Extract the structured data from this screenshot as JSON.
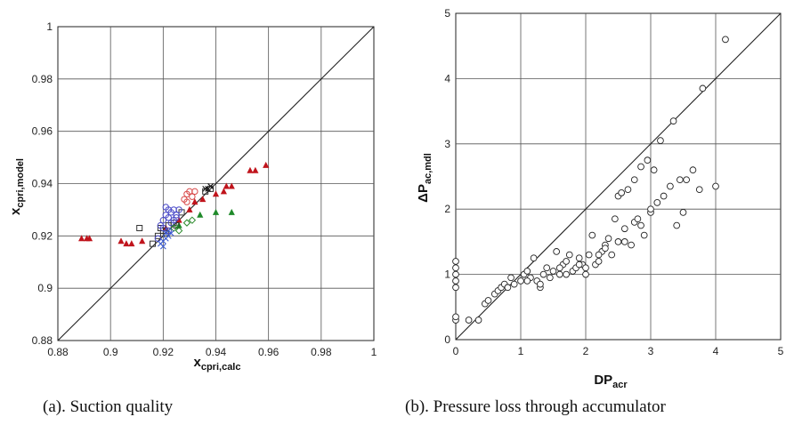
{
  "chart_data": [
    {
      "type": "scatter",
      "caption": "(a).  Suction quality",
      "xlabel_main": "x",
      "xlabel_sub": "cpri,calc",
      "ylabel_main": "x",
      "ylabel_sub": "cpri,model",
      "xlim": [
        0.88,
        1
      ],
      "ylim": [
        0.88,
        1
      ],
      "xticks": [
        "0.88",
        "0.9",
        "0.92",
        "0.94",
        "0.96",
        "0.98",
        "1"
      ],
      "yticks": [
        "0.88",
        "0.9",
        "0.92",
        "0.94",
        "0.96",
        "0.98",
        "1"
      ],
      "grid": true,
      "reference_line": "y = x",
      "colors": {
        "triangle_red": "#c0141c",
        "triangle_green": "#1f8a2a",
        "square": "#333333",
        "circle_blue": "#4a4ac8",
        "circle_red": "#d84a4a",
        "diamond_green": "#2a8a2a",
        "cross_blue": "#3a5ad0"
      },
      "series": [
        {
          "marker": "triangle",
          "color": "#c0141c",
          "points": [
            [
              0.889,
              0.919
            ],
            [
              0.891,
              0.919
            ],
            [
              0.892,
              0.919
            ],
            [
              0.904,
              0.918
            ],
            [
              0.906,
              0.917
            ],
            [
              0.908,
              0.917
            ],
            [
              0.912,
              0.918
            ],
            [
              0.921,
              0.923
            ],
            [
              0.926,
              0.926
            ],
            [
              0.93,
              0.93
            ],
            [
              0.932,
              0.933
            ],
            [
              0.935,
              0.934
            ],
            [
              0.94,
              0.936
            ],
            [
              0.943,
              0.937
            ],
            [
              0.944,
              0.939
            ],
            [
              0.946,
              0.939
            ],
            [
              0.953,
              0.945
            ],
            [
              0.955,
              0.945
            ],
            [
              0.959,
              0.947
            ]
          ]
        },
        {
          "marker": "triangle",
          "color": "#1f8a2a",
          "points": [
            [
              0.94,
              0.929
            ],
            [
              0.946,
              0.929
            ],
            [
              0.934,
              0.928
            ],
            [
              0.926,
              0.924
            ]
          ]
        },
        {
          "marker": "square",
          "color": "#333333",
          "points": [
            [
              0.911,
              0.923
            ],
            [
              0.916,
              0.917
            ],
            [
              0.918,
              0.92
            ],
            [
              0.919,
              0.923
            ],
            [
              0.92,
              0.922
            ],
            [
              0.921,
              0.921
            ],
            [
              0.922,
              0.924
            ],
            [
              0.924,
              0.925
            ],
            [
              0.925,
              0.924
            ],
            [
              0.927,
              0.929
            ],
            [
              0.936,
              0.937
            ],
            [
              0.938,
              0.938
            ]
          ]
        },
        {
          "marker": "circle",
          "color": "#4a4ac8",
          "points": [
            [
              0.918,
              0.919
            ],
            [
              0.919,
              0.924
            ],
            [
              0.92,
              0.926
            ],
            [
              0.921,
              0.928
            ],
            [
              0.921,
              0.931
            ],
            [
              0.922,
              0.93
            ],
            [
              0.922,
              0.927
            ],
            [
              0.923,
              0.925
            ],
            [
              0.923,
              0.929
            ],
            [
              0.924,
              0.926
            ],
            [
              0.924,
              0.93
            ],
            [
              0.925,
              0.927
            ],
            [
              0.925,
              0.928
            ],
            [
              0.926,
              0.93
            ],
            [
              0.92,
              0.923
            ],
            [
              0.922,
              0.922
            ]
          ]
        },
        {
          "marker": "circle",
          "color": "#d84a4a",
          "points": [
            [
              0.928,
              0.934
            ],
            [
              0.929,
              0.936
            ],
            [
              0.93,
              0.937
            ],
            [
              0.931,
              0.935
            ],
            [
              0.932,
              0.937
            ],
            [
              0.929,
              0.933
            ]
          ]
        },
        {
          "marker": "diamond",
          "color": "#2a8a2a",
          "points": [
            [
              0.924,
              0.923
            ],
            [
              0.926,
              0.922
            ],
            [
              0.929,
              0.925
            ],
            [
              0.931,
              0.926
            ]
          ]
        },
        {
          "marker": "cross",
          "color": "#3a5ad0",
          "points": [
            [
              0.919,
              0.917
            ],
            [
              0.92,
              0.918
            ],
            [
              0.921,
              0.919
            ],
            [
              0.922,
              0.92
            ],
            [
              0.921,
              0.921
            ],
            [
              0.92,
              0.916
            ],
            [
              0.922,
              0.922
            ],
            [
              0.923,
              0.921
            ]
          ]
        },
        {
          "marker": "cross",
          "color": "#111111",
          "points": [
            [
              0.936,
              0.938
            ],
            [
              0.937,
              0.938
            ],
            [
              0.938,
              0.939
            ]
          ]
        }
      ]
    },
    {
      "type": "scatter",
      "caption": "(b). Pressure loss through accumulator",
      "xlabel_main": "DP",
      "xlabel_sub": "acr",
      "ylabel_main": "ΔP",
      "ylabel_sub": "ac,mdl",
      "xlim": [
        0,
        5
      ],
      "ylim": [
        0,
        5
      ],
      "xticks": [
        "0",
        "1",
        "2",
        "3",
        "4",
        "5"
      ],
      "yticks": [
        "0",
        "1",
        "2",
        "3",
        "4",
        "5"
      ],
      "grid": true,
      "reference_line": "y = x",
      "series": [
        {
          "marker": "open-circle",
          "color": "#222222",
          "points": [
            [
              0,
              0.3
            ],
            [
              0,
              0.35
            ],
            [
              0,
              0.8
            ],
            [
              0,
              0.9
            ],
            [
              0,
              1.0
            ],
            [
              0,
              1.1
            ],
            [
              0,
              1.2
            ],
            [
              0.2,
              0.3
            ],
            [
              0.35,
              0.3
            ],
            [
              0.45,
              0.55
            ],
            [
              0.5,
              0.6
            ],
            [
              0.6,
              0.7
            ],
            [
              0.65,
              0.75
            ],
            [
              0.7,
              0.8
            ],
            [
              0.75,
              0.85
            ],
            [
              0.8,
              0.8
            ],
            [
              0.85,
              0.95
            ],
            [
              0.9,
              0.85
            ],
            [
              1.0,
              0.9
            ],
            [
              1.05,
              1.0
            ],
            [
              1.1,
              1.05
            ],
            [
              1.15,
              0.95
            ],
            [
              1.2,
              1.25
            ],
            [
              1.25,
              0.9
            ],
            [
              1.3,
              0.8
            ],
            [
              1.35,
              1.0
            ],
            [
              1.4,
              1.1
            ],
            [
              1.45,
              0.95
            ],
            [
              1.5,
              1.05
            ],
            [
              1.55,
              1.35
            ],
            [
              1.6,
              1.0
            ],
            [
              1.65,
              1.15
            ],
            [
              1.7,
              1.2
            ],
            [
              1.75,
              1.3
            ],
            [
              1.8,
              1.05
            ],
            [
              1.85,
              1.1
            ],
            [
              1.9,
              1.25
            ],
            [
              1.95,
              1.15
            ],
            [
              2.0,
              1.1
            ],
            [
              2.05,
              1.3
            ],
            [
              2.1,
              1.6
            ],
            [
              2.15,
              1.15
            ],
            [
              2.2,
              1.2
            ],
            [
              2.25,
              1.35
            ],
            [
              2.3,
              1.45
            ],
            [
              2.35,
              1.55
            ],
            [
              2.4,
              1.3
            ],
            [
              2.45,
              1.85
            ],
            [
              2.5,
              1.5
            ],
            [
              2.5,
              2.2
            ],
            [
              2.55,
              2.25
            ],
            [
              2.6,
              1.7
            ],
            [
              2.65,
              2.3
            ],
            [
              2.7,
              1.45
            ],
            [
              2.75,
              1.8
            ],
            [
              2.75,
              2.45
            ],
            [
              2.8,
              1.85
            ],
            [
              2.85,
              2.65
            ],
            [
              2.9,
              1.6
            ],
            [
              2.95,
              2.75
            ],
            [
              3.0,
              1.95
            ],
            [
              3.05,
              2.6
            ],
            [
              3.1,
              2.1
            ],
            [
              3.15,
              3.05
            ],
            [
              3.2,
              2.2
            ],
            [
              3.3,
              2.35
            ],
            [
              3.35,
              3.35
            ],
            [
              3.4,
              1.75
            ],
            [
              3.45,
              2.45
            ],
            [
              3.5,
              1.95
            ],
            [
              3.55,
              2.45
            ],
            [
              3.65,
              2.6
            ],
            [
              3.75,
              2.3
            ],
            [
              3.8,
              3.85
            ],
            [
              4.0,
              2.35
            ],
            [
              4.15,
              4.6
            ],
            [
              2.3,
              1.4
            ],
            [
              1.9,
              1.15
            ],
            [
              1.7,
              1.0
            ],
            [
              1.6,
              1.1
            ],
            [
              1.3,
              0.85
            ],
            [
              1.1,
              0.9
            ],
            [
              2.2,
              1.3
            ],
            [
              2.6,
              1.5
            ],
            [
              2.0,
              1.0
            ],
            [
              2.85,
              1.75
            ],
            [
              3.0,
              2.0
            ]
          ]
        }
      ]
    }
  ]
}
